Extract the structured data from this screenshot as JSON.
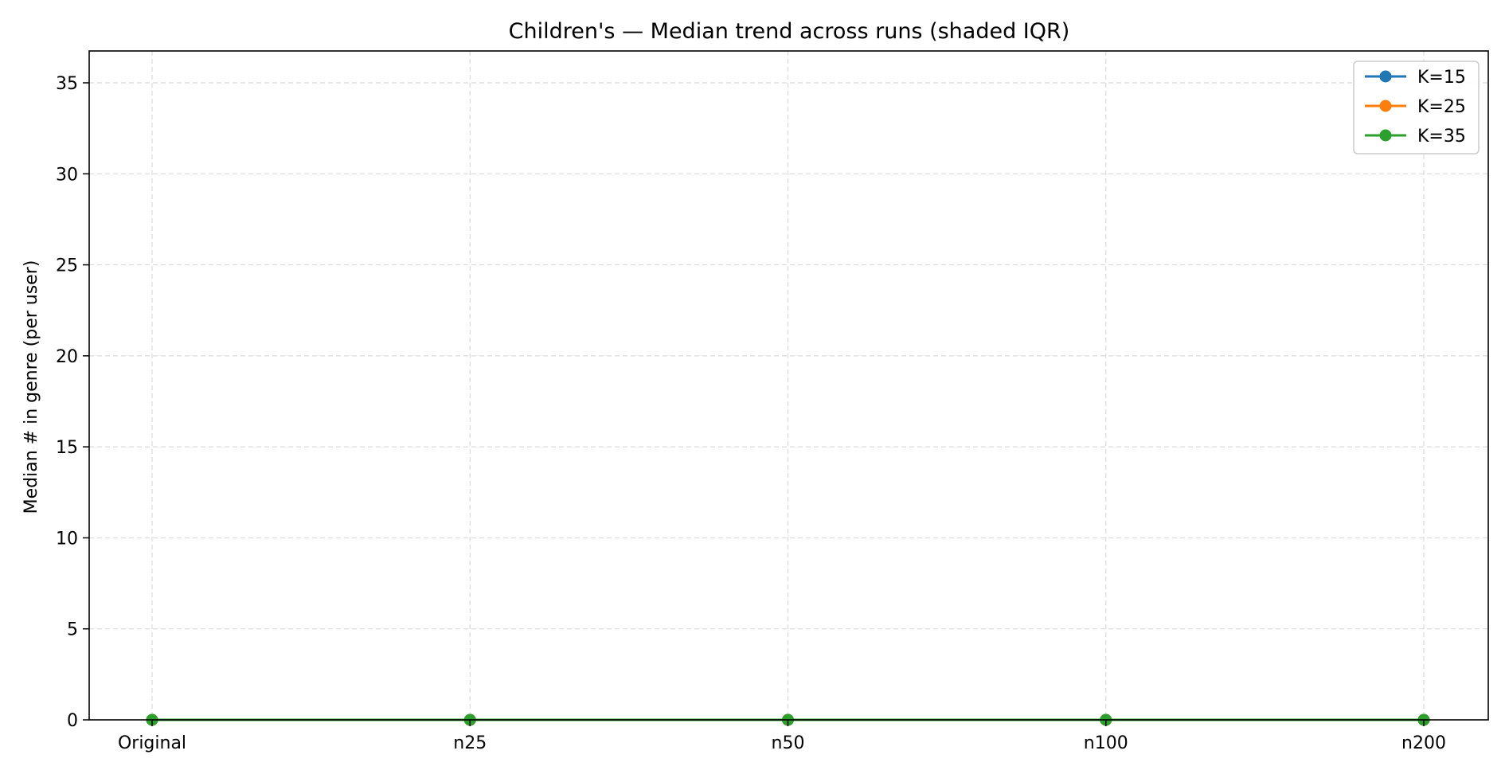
{
  "chart_data": {
    "type": "line",
    "title": "Children's — Median trend across runs (shaded IQR)",
    "xlabel": "",
    "ylabel": "Median # in genre (per user)",
    "categories": [
      "Original",
      "n25",
      "n50",
      "n100",
      "n200"
    ],
    "ylim": [
      0,
      36.75
    ],
    "yticks": [
      0,
      5,
      10,
      15,
      20,
      25,
      30,
      35
    ],
    "grid": true,
    "legend_position": "top-right",
    "series": [
      {
        "name": "K=15",
        "color": "#1f77b4",
        "values": [
          0,
          0,
          0,
          0,
          0
        ]
      },
      {
        "name": "K=25",
        "color": "#ff7f0e",
        "values": [
          0,
          0,
          0,
          0,
          0
        ]
      },
      {
        "name": "K=35",
        "color": "#2ca02c",
        "values": [
          0,
          0,
          0,
          0,
          0
        ]
      }
    ]
  }
}
